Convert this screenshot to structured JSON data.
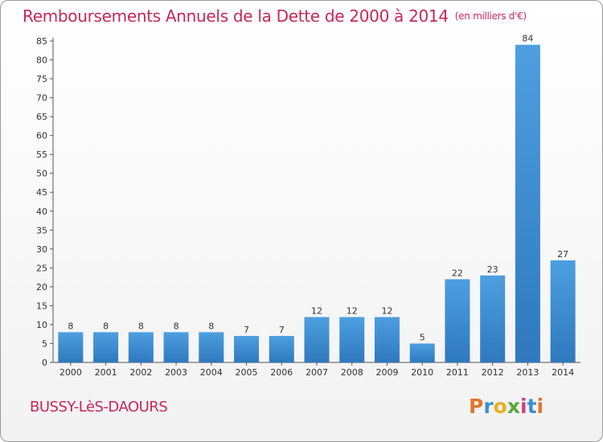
{
  "title": "Remboursements Annuels de la Dette de 2000 à 2014",
  "unit": "(en milliers d'€)",
  "commune": "BUSSY-LèS-DAOURS",
  "logo": {
    "text": "Proxiti",
    "letter_colors": [
      "#e2752b",
      "#3a8fd0",
      "#e8b020",
      "#5aa83a",
      "#d63c8c",
      "#3a8fd0",
      "#e2752b"
    ]
  },
  "chart_data": {
    "type": "bar",
    "categories": [
      "2000",
      "2001",
      "2002",
      "2003",
      "2004",
      "2005",
      "2006",
      "2007",
      "2008",
      "2009",
      "2010",
      "2011",
      "2012",
      "2013",
      "2014"
    ],
    "values": [
      8,
      8,
      8,
      8,
      8,
      7,
      7,
      12,
      12,
      12,
      5,
      22,
      23,
      84,
      27
    ],
    "ylim": [
      0,
      85
    ],
    "yticks": [
      0,
      5,
      10,
      15,
      20,
      25,
      30,
      35,
      40,
      45,
      50,
      55,
      60,
      65,
      70,
      75,
      80,
      85
    ],
    "grid": false,
    "bar_color": "#4d9fe0",
    "bar_color_dark": "#2f78be"
  }
}
